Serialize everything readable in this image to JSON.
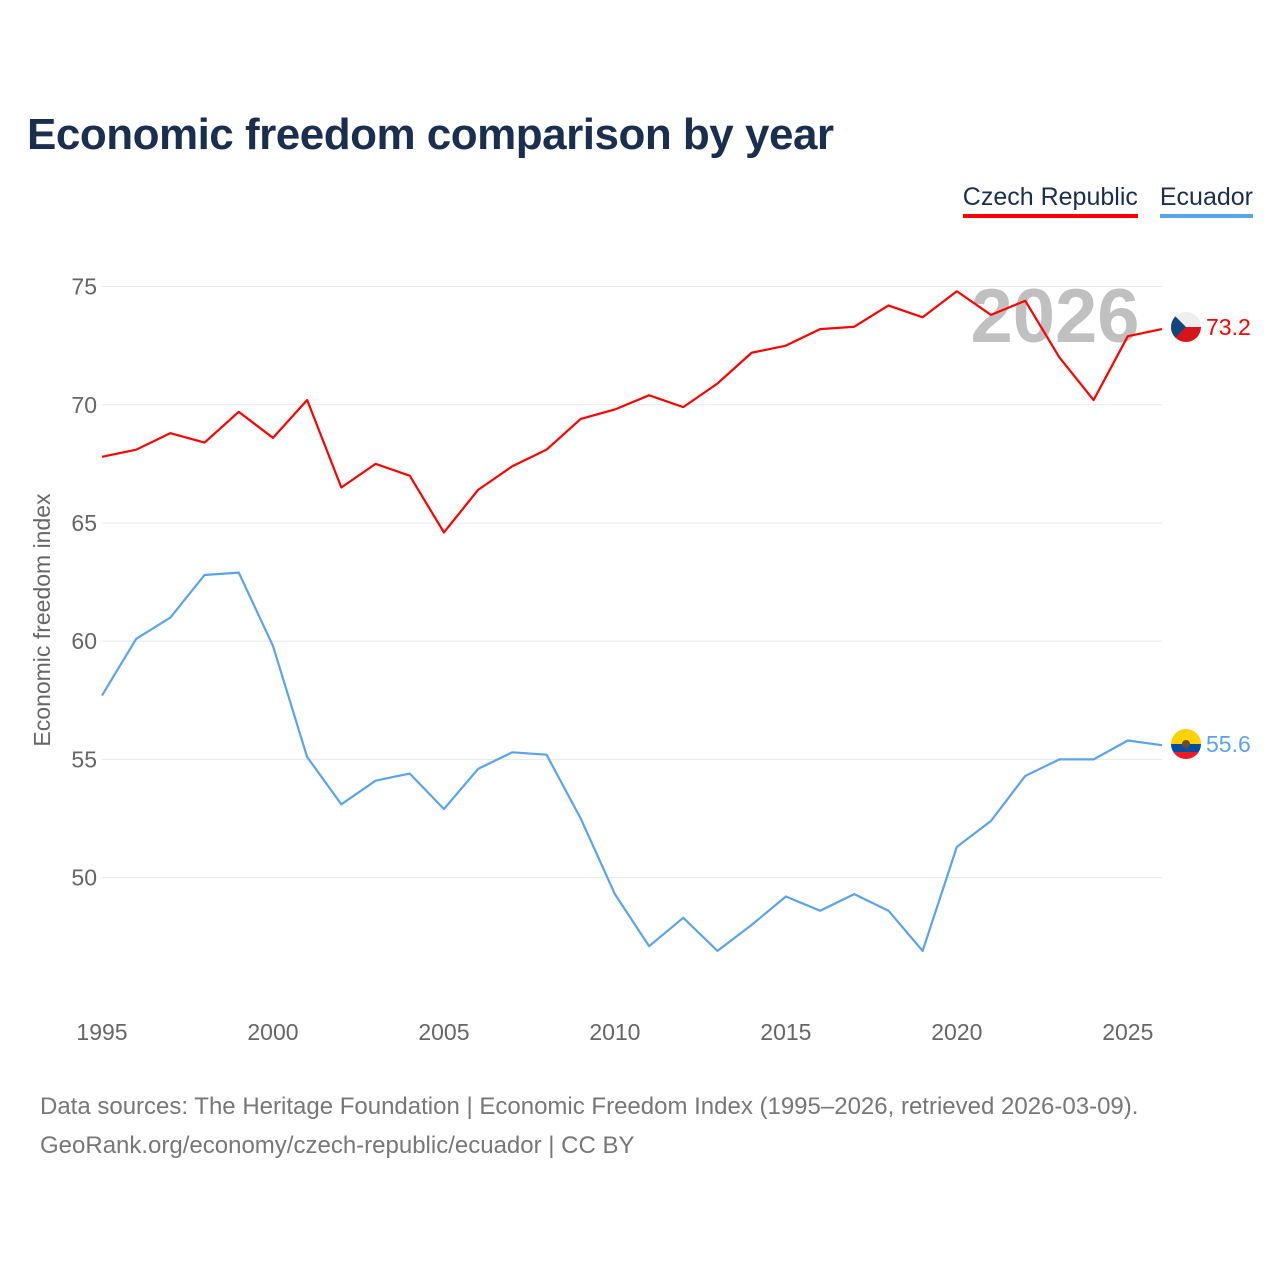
{
  "title": "Economic freedom comparison by year",
  "footer": {
    "line1": "Data sources: The Heritage Foundation | Economic Freedom Index (1995–2026, retrieved 2026-03-09).",
    "line2": "GeoRank.org/economy/czech-republic/ecuador | CC BY"
  },
  "chart_data": {
    "type": "line",
    "title": "Economic freedom comparison by year",
    "xlabel": "",
    "ylabel": "Economic freedom index",
    "x": [
      1995,
      1996,
      1997,
      1998,
      1999,
      2000,
      2001,
      2002,
      2003,
      2004,
      2005,
      2006,
      2007,
      2008,
      2009,
      2010,
      2011,
      2012,
      2013,
      2014,
      2015,
      2016,
      2017,
      2018,
      2019,
      2020,
      2021,
      2022,
      2023,
      2024,
      2025,
      2026
    ],
    "xticks": [
      "1995",
      "2000",
      "2005",
      "2010",
      "2015",
      "2020",
      "2025"
    ],
    "yticks": [
      "50",
      "55",
      "60",
      "65",
      "70",
      "75"
    ],
    "ylim": [
      44.4,
      75.7
    ],
    "xlim": [
      1995,
      2026
    ],
    "year_watermark": "2026",
    "legend_position": "top-right",
    "grid": true,
    "series": [
      {
        "name": "Czech Republic",
        "color": "#ff0000",
        "end_label": "73.2",
        "values": [
          67.8,
          68.1,
          68.8,
          68.4,
          69.7,
          68.6,
          70.2,
          66.5,
          67.5,
          67.0,
          64.6,
          66.4,
          67.4,
          68.1,
          69.4,
          69.8,
          70.4,
          69.9,
          70.9,
          72.2,
          72.5,
          73.2,
          73.3,
          74.2,
          73.7,
          74.8,
          73.8,
          74.4,
          72.0,
          70.2,
          72.9,
          73.2
        ]
      },
      {
        "name": "Ecuador",
        "color": "#5ba4ec",
        "end_label": "55.6",
        "values": [
          57.7,
          60.1,
          61.0,
          62.8,
          62.9,
          59.8,
          55.1,
          53.1,
          54.1,
          54.4,
          52.9,
          54.6,
          55.3,
          55.2,
          52.5,
          49.3,
          47.1,
          48.3,
          46.9,
          48.0,
          49.2,
          48.6,
          49.3,
          48.6,
          46.9,
          51.3,
          52.4,
          54.3,
          55.0,
          55.0,
          55.8,
          55.6
        ]
      }
    ]
  }
}
